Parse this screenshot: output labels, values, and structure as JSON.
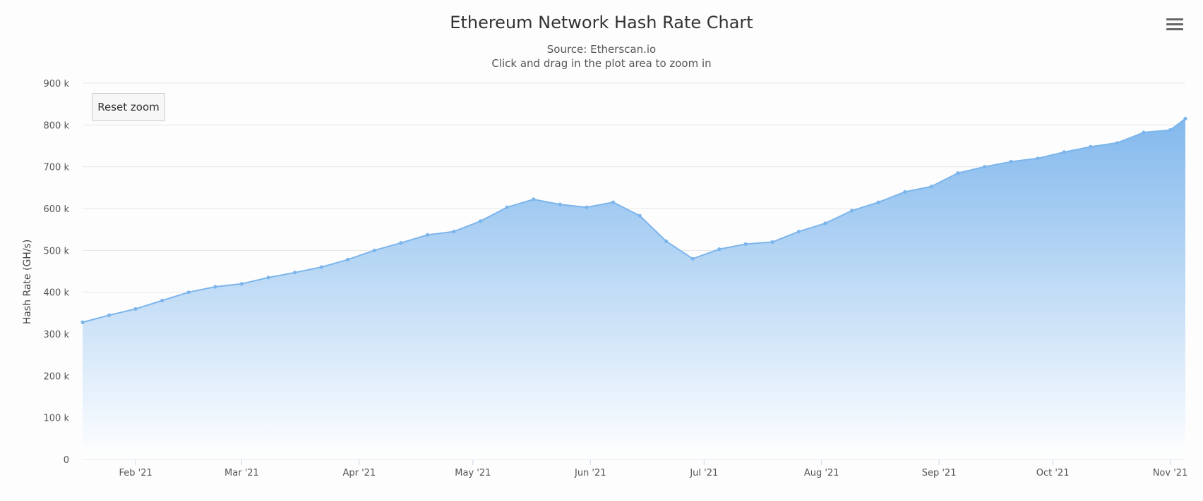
{
  "chart_data": {
    "type": "area",
    "title": "Ethereum Network Hash Rate Chart",
    "subtitle": [
      "Source: Etherscan.io",
      "Click and drag in the plot area to zoom in"
    ],
    "ylabel": "Hash Rate (GH/s)",
    "xlabel": "",
    "ylim": [
      0,
      900000
    ],
    "xlim": [
      "2021-01-18",
      "2021-11-05"
    ],
    "y_ticks": [
      {
        "value": 0,
        "label": "0"
      },
      {
        "value": 100000,
        "label": "100 k"
      },
      {
        "value": 200000,
        "label": "200 k"
      },
      {
        "value": 300000,
        "label": "300 k"
      },
      {
        "value": 400000,
        "label": "400 k"
      },
      {
        "value": 500000,
        "label": "500 k"
      },
      {
        "value": 600000,
        "label": "600 k"
      },
      {
        "value": 700000,
        "label": "700 k"
      },
      {
        "value": 800000,
        "label": "800 k"
      },
      {
        "value": 900000,
        "label": "900 k"
      }
    ],
    "x_ticks": [
      {
        "value": "2021-02-01",
        "label": "Feb '21"
      },
      {
        "value": "2021-03-01",
        "label": "Mar '21"
      },
      {
        "value": "2021-04-01",
        "label": "Apr '21"
      },
      {
        "value": "2021-05-01",
        "label": "May '21"
      },
      {
        "value": "2021-06-01",
        "label": "Jun '21"
      },
      {
        "value": "2021-07-01",
        "label": "Jul '21"
      },
      {
        "value": "2021-08-01",
        "label": "Aug '21"
      },
      {
        "value": "2021-09-01",
        "label": "Sep '21"
      },
      {
        "value": "2021-10-01",
        "label": "Oct '21"
      },
      {
        "value": "2021-11-01",
        "label": "Nov '21"
      }
    ],
    "grid": true,
    "legend": "none",
    "colors": {
      "line": "#7cb5ec",
      "area_top": "#7cb5ec",
      "area_bottom": "#ffffff",
      "grid": "#e6e6e6"
    },
    "series": [
      {
        "x": [
          "2021-01-18",
          "2021-01-25",
          "2021-02-01",
          "2021-02-08",
          "2021-02-15",
          "2021-02-22",
          "2021-03-01",
          "2021-03-08",
          "2021-03-15",
          "2021-03-22",
          "2021-03-29",
          "2021-04-05",
          "2021-04-12",
          "2021-04-19",
          "2021-04-26",
          "2021-05-03",
          "2021-05-10",
          "2021-05-17",
          "2021-05-24",
          "2021-05-31",
          "2021-06-07",
          "2021-06-14",
          "2021-06-21",
          "2021-06-28",
          "2021-07-05",
          "2021-07-12",
          "2021-07-19",
          "2021-07-26",
          "2021-08-02",
          "2021-08-09",
          "2021-08-16",
          "2021-08-23",
          "2021-08-30",
          "2021-09-06",
          "2021-09-13",
          "2021-09-20",
          "2021-09-27",
          "2021-10-04",
          "2021-10-11",
          "2021-10-18",
          "2021-10-25",
          "2021-11-01",
          "2021-11-05"
        ],
        "values": [
          328000,
          345000,
          360000,
          380000,
          400000,
          413000,
          420000,
          435000,
          447000,
          460000,
          478000,
          500000,
          518000,
          537000,
          545000,
          570000,
          603000,
          622000,
          610000,
          603000,
          615000,
          583000,
          522000,
          480000,
          503000,
          515000,
          520000,
          545000,
          565000,
          595000,
          615000,
          640000,
          653000,
          685000,
          700000,
          712000,
          720000,
          735000,
          748000,
          757000,
          782000,
          788000,
          815000
        ]
      }
    ]
  },
  "reset_button": "Reset zoom",
  "menu_icon": "hamburger-menu-icon"
}
